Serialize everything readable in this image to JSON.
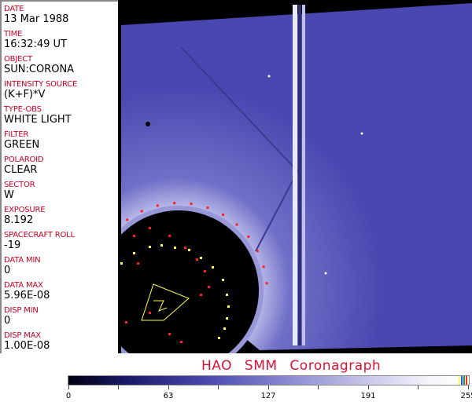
{
  "fields": [
    {
      "label": "DATE",
      "value": "13 Mar 1988"
    },
    {
      "label": "TIME",
      "value": "16:32:49 UT"
    },
    {
      "label": "OBJECT",
      "value": "SUN:CORONA"
    },
    {
      "label": "INTENSITY SOURCE",
      "value": "(K+F)*V"
    },
    {
      "label": "TYPE-OBS",
      "value": "WHITE LIGHT"
    },
    {
      "label": "FILTER",
      "value": "GREEN"
    },
    {
      "label": "POLAROID",
      "value": "CLEAR"
    },
    {
      "label": "SECTOR",
      "value": "W"
    },
    {
      "label": "EXPOSURE",
      "value": "8.192"
    },
    {
      "label": "SPACECRAFT ROLL",
      "value": "-19"
    },
    {
      "label": "DATA MIN",
      "value": "0"
    },
    {
      "label": "DATA MAX",
      "value": "5.96E-08"
    },
    {
      "label": "DISP MIN",
      "value": "0"
    },
    {
      "label": "DISP MAX",
      "value": "1.00E-08"
    }
  ],
  "title": "HAO SMM Coronagraph",
  "colorbar": {
    "ticks": [
      "0",
      "63",
      "127",
      "191",
      "255"
    ],
    "colors": {
      "low": "#000010",
      "mid": "#4a4ab0",
      "high": "#ffffff"
    }
  },
  "overlay_colors": {
    "markers_red": "#ff2020",
    "markers_yellow": "#ffff40",
    "label_red": "#cc0022"
  }
}
